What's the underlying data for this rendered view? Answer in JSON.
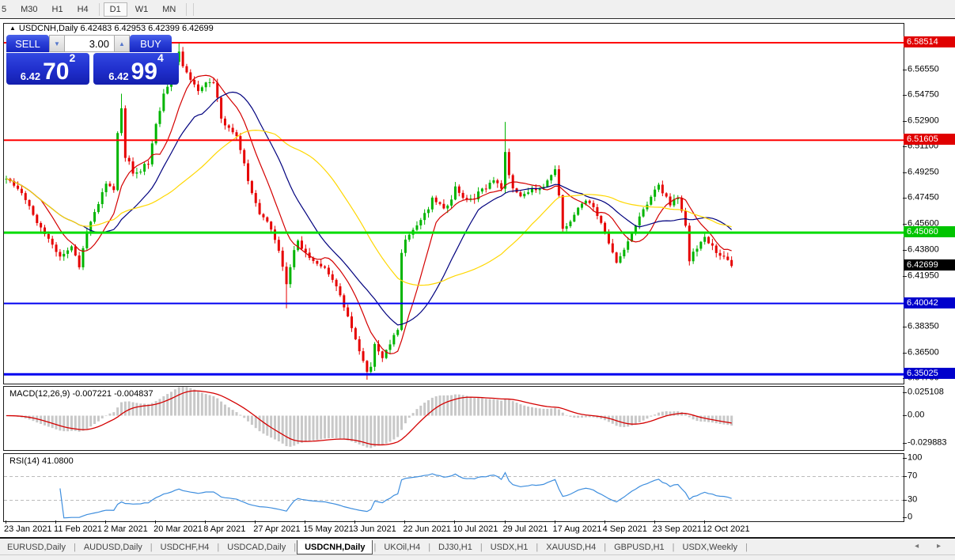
{
  "timeframe_bar": {
    "items": [
      {
        "label": "5",
        "active": false
      },
      {
        "label": "M30",
        "active": false
      },
      {
        "label": "H1",
        "active": false
      },
      {
        "label": "H4",
        "active": false
      },
      {
        "label": "D1",
        "active": true
      },
      {
        "label": "W1",
        "active": false
      },
      {
        "label": "MN",
        "active": false
      }
    ]
  },
  "chart_header": {
    "arrow": "▲",
    "symbol_line": "USDCNH,Daily  6.42483 6.42953 6.42399 6.42699"
  },
  "trade_panel": {
    "sell_label": "SELL",
    "buy_label": "BUY",
    "volume": "3.00",
    "spin_down": "▼",
    "spin_up": "▲",
    "sell_price_small": "6.42",
    "sell_price_big": "70",
    "sell_price_sup": "2",
    "buy_price_small": "6.42",
    "buy_price_big": "99",
    "buy_price_sup": "4"
  },
  "chart_data": {
    "type": "candlestick",
    "symbol": "USDCNH",
    "timeframe": "Daily",
    "ohlc_display": {
      "open": "6.42483",
      "high": "6.42953",
      "low": "6.42399",
      "close": "6.42699"
    },
    "current_price": 6.42699,
    "candle_count": 190,
    "price_path_anchors": [
      [
        0,
        6.49
      ],
      [
        4,
        6.479
      ],
      [
        8,
        6.458
      ],
      [
        11,
        6.448
      ],
      [
        14,
        6.434
      ],
      [
        17,
        6.44
      ],
      [
        19,
        6.427
      ],
      [
        21,
        6.452
      ],
      [
        24,
        6.47
      ],
      [
        26,
        6.486
      ],
      [
        28,
        6.482
      ],
      [
        29,
        6.52
      ],
      [
        30,
        6.54
      ],
      [
        31,
        6.505
      ],
      [
        33,
        6.494
      ],
      [
        35,
        6.495
      ],
      [
        37,
        6.5
      ],
      [
        39,
        6.528
      ],
      [
        41,
        6.548
      ],
      [
        43,
        6.562
      ],
      [
        45,
        6.578
      ],
      [
        46,
        6.57
      ],
      [
        48,
        6.56
      ],
      [
        50,
        6.552
      ],
      [
        52,
        6.556
      ],
      [
        54,
        6.558
      ],
      [
        56,
        6.532
      ],
      [
        58,
        6.524
      ],
      [
        60,
        6.518
      ],
      [
        62,
        6.498
      ],
      [
        64,
        6.478
      ],
      [
        66,
        6.465
      ],
      [
        68,
        6.458
      ],
      [
        70,
        6.445
      ],
      [
        72,
        6.428
      ],
      [
        73,
        6.415
      ],
      [
        75,
        6.438
      ],
      [
        76,
        6.445
      ],
      [
        78,
        6.436
      ],
      [
        80,
        6.432
      ],
      [
        82,
        6.428
      ],
      [
        84,
        6.422
      ],
      [
        86,
        6.412
      ],
      [
        88,
        6.398
      ],
      [
        90,
        6.383
      ],
      [
        92,
        6.368
      ],
      [
        94,
        6.352
      ],
      [
        95,
        6.355
      ],
      [
        96,
        6.37
      ],
      [
        97,
        6.365
      ],
      [
        98,
        6.36
      ],
      [
        100,
        6.372
      ],
      [
        101,
        6.378
      ],
      [
        102,
        6.382
      ],
      [
        103,
        6.438
      ],
      [
        105,
        6.45
      ],
      [
        107,
        6.455
      ],
      [
        109,
        6.463
      ],
      [
        111,
        6.474
      ],
      [
        113,
        6.47
      ],
      [
        115,
        6.468
      ],
      [
        117,
        6.482
      ],
      [
        119,
        6.477
      ],
      [
        121,
        6.473
      ],
      [
        123,
        6.478
      ],
      [
        125,
        6.483
      ],
      [
        127,
        6.488
      ],
      [
        129,
        6.482
      ],
      [
        130,
        6.508
      ],
      [
        131,
        6.49
      ],
      [
        132,
        6.483
      ],
      [
        134,
        6.478
      ],
      [
        136,
        6.48
      ],
      [
        138,
        6.48
      ],
      [
        140,
        6.483
      ],
      [
        142,
        6.49
      ],
      [
        143,
        6.497
      ],
      [
        144,
        6.478
      ],
      [
        145,
        6.452
      ],
      [
        147,
        6.458
      ],
      [
        148,
        6.463
      ],
      [
        150,
        6.47
      ],
      [
        151,
        6.472
      ],
      [
        153,
        6.468
      ],
      [
        155,
        6.458
      ],
      [
        157,
        6.442
      ],
      [
        159,
        6.43
      ],
      [
        161,
        6.44
      ],
      [
        163,
        6.452
      ],
      [
        165,
        6.462
      ],
      [
        167,
        6.472
      ],
      [
        169,
        6.48
      ],
      [
        170,
        6.483
      ],
      [
        172,
        6.476
      ],
      [
        173,
        6.47
      ],
      [
        175,
        6.477
      ],
      [
        177,
        6.455
      ],
      [
        178,
        6.432
      ],
      [
        180,
        6.44
      ],
      [
        182,
        6.446
      ],
      [
        184,
        6.44
      ],
      [
        185,
        6.436
      ],
      [
        187,
        6.433
      ],
      [
        188,
        6.43
      ],
      [
        189,
        6.42699
      ]
    ],
    "wick_overrides": [
      {
        "i": 30,
        "h": 6.549
      },
      {
        "i": 45,
        "h": 6.5851
      },
      {
        "i": 73,
        "l": 6.397
      },
      {
        "i": 94,
        "l": 6.3464
      },
      {
        "i": 130,
        "h": 6.529
      }
    ],
    "levels": [
      {
        "price": 6.58514,
        "color": "#ff0000",
        "width": 2
      },
      {
        "price": 6.51605,
        "color": "#ff0000",
        "width": 2
      },
      {
        "price": 6.4506,
        "color": "#00dd00",
        "width": 3
      },
      {
        "price": 6.40042,
        "color": "#0000f0",
        "width": 2
      },
      {
        "price": 6.35025,
        "color": "#0000f0",
        "width": 3
      }
    ],
    "price_axis": {
      "plain_ticks": [
        "6.56550",
        "6.54750",
        "6.52900",
        "6.51100",
        "6.49250",
        "6.47450",
        "6.45600",
        "6.43800",
        "6.41950",
        "6.38350",
        "6.36500",
        "6.34700"
      ],
      "badges": [
        {
          "text": "6.58514",
          "price": 6.58514,
          "color": "#e00000"
        },
        {
          "text": "6.51605",
          "price": 6.51605,
          "color": "#e00000"
        },
        {
          "text": "6.45060",
          "price": 6.4506,
          "color": "#00c400"
        },
        {
          "text": "6.42699",
          "price": 6.42699,
          "color": "#000000"
        },
        {
          "text": "6.40042",
          "price": 6.40042,
          "color": "#0000cc"
        },
        {
          "text": "6.35025",
          "price": 6.35025,
          "color": "#0000cc"
        }
      ]
    },
    "date_axis": {
      "labels": [
        "23 Jan 2021",
        "11 Feb 2021",
        "2 Mar 2021",
        "20 Mar 2021",
        "8 Apr 2021",
        "27 Apr 2021",
        "15 May 2021",
        "3 Jun 2021",
        "22 Jun 2021",
        "10 Jul 2021",
        "29 Jul 2021",
        "17 Aug 2021",
        "4 Sep 2021",
        "23 Sep 2021",
        "12 Oct 2021"
      ],
      "tick_every_candles": 13
    },
    "moving_averages": [
      {
        "name": "fast",
        "period": 10,
        "color": "#d40000"
      },
      {
        "name": "mid",
        "period": 21,
        "color": "#00007e"
      },
      {
        "name": "slow",
        "period": 42,
        "color": "#ffd700"
      }
    ],
    "macd": {
      "label_full": "MACD(12,26,9) -0.007221 -0.004837",
      "fast": 12,
      "slow": 26,
      "signal": 9,
      "axis_max": 0.025108,
      "axis_min": -0.029883,
      "axis_labels": [
        {
          "text": "0.025108",
          "value": 0.025108
        },
        {
          "text": "0.00",
          "value": 0
        },
        {
          "text": "-0.029883",
          "value": -0.029883
        }
      ],
      "hist_color": "#c8c8c8",
      "signal_color": "#d40000"
    },
    "rsi": {
      "label_full": "RSI(14) 41.0800",
      "period": 14,
      "value": 41.08,
      "guide_levels": [
        70,
        30
      ],
      "axis_labels": [
        {
          "text": "100",
          "value": 100
        },
        {
          "text": "70",
          "value": 70
        },
        {
          "text": "30",
          "value": 30
        },
        {
          "text": "0",
          "value": 0
        }
      ],
      "line_color": "#3e8ede",
      "guide_color": "#bbbbbb"
    },
    "colors": {
      "up": "#00b400",
      "down": "#e60000"
    }
  },
  "tab_bar": {
    "tabs": [
      "EURUSD,Daily",
      "AUDUSD,Daily",
      "USDCHF,H4",
      "USDCAD,Daily",
      "USDCNH,Daily",
      "UKOil,H4",
      "DJ30,H1",
      "USDX,H1",
      "XAUUSD,H4",
      "GBPUSD,H1",
      "USDX,Weekly"
    ],
    "active": "USDCNH,Daily",
    "scroll_left": "◂",
    "scroll_right": "▸"
  }
}
